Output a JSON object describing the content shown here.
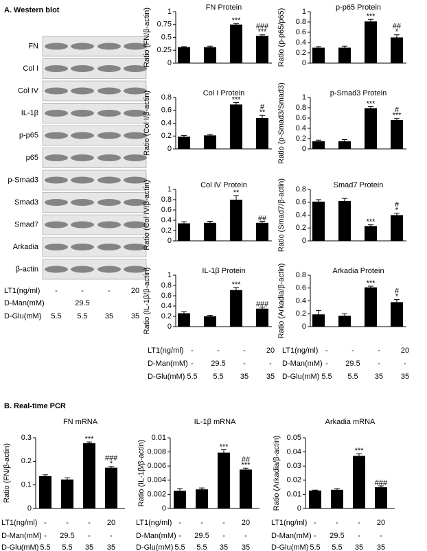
{
  "sections": [
    "A. Western blot",
    "B. Real-time PCR"
  ],
  "western_blot": {
    "rows": [
      "FN",
      "Col I",
      "Col IV",
      "IL-1β",
      "p-p65",
      "p65",
      "p-Smad3",
      "Smad3",
      "Smad7",
      "Arkadia",
      "β-actin"
    ],
    "conditions": [
      {
        "label": "LT1(ng/ml)",
        "values": [
          "-",
          "-",
          "-",
          "20"
        ]
      },
      {
        "label": "D-Man(mM)",
        "values": [
          null,
          "29.5",
          null,
          null
        ]
      },
      {
        "label": "D-Glu(mM)",
        "values": [
          "5.5",
          "5.5",
          "35",
          "35"
        ]
      }
    ]
  },
  "conditions": [
    {
      "label": "LT1(ng/ml)",
      "values": [
        "-",
        "-",
        "-",
        "20"
      ]
    },
    {
      "label": "D-Man(mM)",
      "values": [
        "-",
        "29.5",
        "-",
        "-"
      ]
    },
    {
      "label": "D-Glu(mM)",
      "values": [
        "5.5",
        "5.5",
        "35",
        "35"
      ]
    }
  ],
  "chart_data": [
    {
      "type": "bar",
      "title": "FN Protein",
      "ylabel": "Ratio (FN/β-actin)",
      "color": "#000000",
      "values": [
        0.31,
        0.31,
        0.75,
        0.53
      ],
      "errors": [
        0.01,
        0.02,
        0.02,
        0.02
      ],
      "annotations": [
        null,
        null,
        [
          "***"
        ],
        [
          "###",
          "***"
        ]
      ],
      "ylim": [
        0,
        1
      ],
      "yticks": [
        0,
        0.25,
        0.5,
        0.75,
        1
      ]
    },
    {
      "type": "bar",
      "title": "p-p65 Protein",
      "ylabel": "Ratio (p-p65/p65)",
      "color": "#000000",
      "values": [
        0.3,
        0.3,
        0.81,
        0.5
      ],
      "errors": [
        0.02,
        0.03,
        0.04,
        0.05
      ],
      "annotations": [
        null,
        null,
        [
          "***"
        ],
        [
          "##",
          "*"
        ]
      ],
      "ylim": [
        0,
        1
      ],
      "yticks": [
        0,
        0.2,
        0.4,
        0.6,
        0.8,
        1
      ]
    },
    {
      "type": "bar",
      "title": "Col I Protein",
      "ylabel": "Ratio (Col I/β-actin)",
      "color": "#000000",
      "values": [
        0.19,
        0.21,
        0.69,
        0.48
      ],
      "errors": [
        0.02,
        0.02,
        0.03,
        0.04
      ],
      "annotations": [
        null,
        null,
        [
          "***"
        ],
        [
          "#",
          "**"
        ]
      ],
      "ylim": [
        0,
        0.8
      ],
      "yticks": [
        0,
        0.2,
        0.4,
        0.6,
        0.8
      ]
    },
    {
      "type": "bar",
      "title": "p-Smad3 Protein",
      "ylabel": "Ratio (p-Smad3/Smad3)",
      "color": "#000000",
      "values": [
        0.15,
        0.15,
        0.79,
        0.56
      ],
      "errors": [
        0.02,
        0.03,
        0.03,
        0.03
      ],
      "annotations": [
        null,
        null,
        [
          "***"
        ],
        [
          "#",
          "***"
        ]
      ],
      "ylim": [
        0,
        1
      ],
      "yticks": [
        0,
        0.2,
        0.4,
        0.6,
        0.8,
        1
      ]
    },
    {
      "type": "bar",
      "title": "Col IV Protein",
      "ylabel": "Ratio (Col IV/β-actin)",
      "color": "#000000",
      "values": [
        0.34,
        0.35,
        0.8,
        0.35
      ],
      "errors": [
        0.03,
        0.03,
        0.08,
        0.03
      ],
      "annotations": [
        null,
        null,
        [
          "**"
        ],
        [
          "##"
        ]
      ],
      "ylim": [
        0,
        1
      ],
      "yticks": [
        0,
        0.2,
        0.4,
        0.6,
        0.8,
        1
      ]
    },
    {
      "type": "bar",
      "title": "Smad7 Protein",
      "ylabel": "Ratio (Smad7/β-actin)",
      "color": "#000000",
      "values": [
        0.61,
        0.62,
        0.23,
        0.4
      ],
      "errors": [
        0.03,
        0.04,
        0.02,
        0.03
      ],
      "annotations": [
        null,
        null,
        [
          "***"
        ],
        [
          "#",
          "*"
        ]
      ],
      "ylim": [
        0,
        0.8
      ],
      "yticks": [
        0,
        0.2,
        0.4,
        0.6,
        0.8
      ]
    },
    {
      "type": "bar",
      "title": "IL-1β Protein",
      "ylabel": "Ratio (IL-1β/β-actin)",
      "color": "#000000",
      "values": [
        0.26,
        0.2,
        0.71,
        0.35
      ],
      "errors": [
        0.03,
        0.02,
        0.05,
        0.03
      ],
      "annotations": [
        null,
        null,
        [
          "***"
        ],
        [
          "###"
        ]
      ],
      "ylim": [
        0,
        1
      ],
      "yticks": [
        0,
        0.2,
        0.4,
        0.6,
        0.8,
        1
      ]
    },
    {
      "type": "bar",
      "title": "Arkadia Protein",
      "ylabel": "Ratio (Arkadia/β-actin)",
      "color": "#000000",
      "values": [
        0.19,
        0.17,
        0.61,
        0.38
      ],
      "errors": [
        0.06,
        0.03,
        0.02,
        0.04
      ],
      "annotations": [
        null,
        null,
        [
          "***"
        ],
        [
          "#",
          "*"
        ]
      ],
      "ylim": [
        0,
        0.8
      ],
      "yticks": [
        0,
        0.2,
        0.4,
        0.6,
        0.8
      ]
    },
    {
      "type": "bar",
      "title": "FN mRNA",
      "ylabel": "Ratio (FN/β-actin)",
      "color": "#000000",
      "values": [
        0.137,
        0.123,
        0.277,
        0.173
      ],
      "errors": [
        0.006,
        0.007,
        0.005,
        0.005
      ],
      "annotations": [
        null,
        null,
        [
          "***"
        ],
        [
          "###",
          "*"
        ]
      ],
      "ylim": [
        0,
        0.3
      ],
      "yticks": [
        0,
        0.1,
        0.2,
        0.3
      ]
    },
    {
      "type": "bar",
      "title": "IL-1β mRNA",
      "ylabel": "Ratio (IL-1β/β-actin)",
      "color": "#000000",
      "values": [
        0.0025,
        0.0027,
        0.0079,
        0.0055
      ],
      "errors": [
        0.0003,
        0.0002,
        0.0004,
        0.0002
      ],
      "annotations": [
        null,
        null,
        [
          "***"
        ],
        [
          "##",
          "***"
        ]
      ],
      "ylim": [
        0,
        0.01
      ],
      "yticks": [
        0,
        0.002,
        0.004,
        0.006,
        0.008,
        0.01
      ]
    },
    {
      "type": "bar",
      "title": "Arkadia mRNA",
      "ylabel": "Ratio (Arkadia/β-actin)",
      "color": "#000000",
      "values": [
        0.0127,
        0.0132,
        0.0372,
        0.015
      ],
      "errors": [
        0.0003,
        0.0008,
        0.0015,
        0.001
      ],
      "annotations": [
        null,
        null,
        [
          "***"
        ],
        [
          "###"
        ]
      ],
      "ylim": [
        0,
        0.05
      ],
      "yticks": [
        0,
        0.01,
        0.02,
        0.03,
        0.04,
        0.05
      ]
    }
  ]
}
